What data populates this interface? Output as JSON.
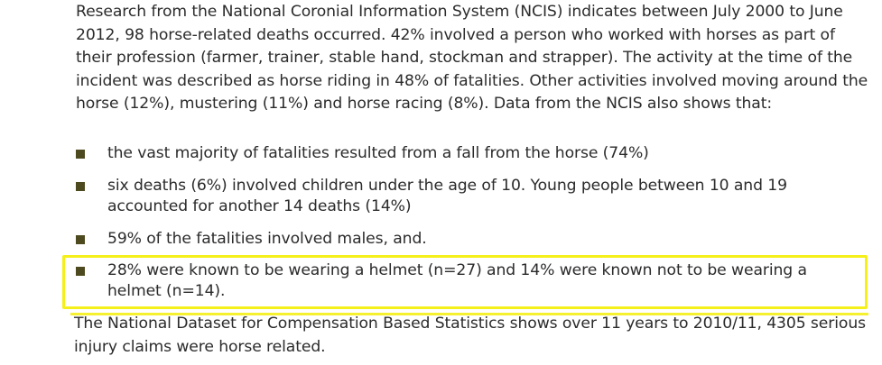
{
  "intro_paragraph": "Research from the National Coronial Information System (NCIS) indicates between July 2000 to June 2012, 98 horse-related deaths occurred. 42% involved a person who worked with horses as part of their profession (farmer, trainer, stable hand, stockman and strapper). The activity at the time of the incident was described as horse riding in 48% of fatalities. Other activities involved moving around the horse (12%), mustering (11%) and horse racing (8%). Data from the NCIS also shows that:",
  "bullets": [
    "the vast majority of fatalities resulted from a fall from the horse (74%)",
    "six deaths (6%) involved children under the age of 10. Young people between 10 and 19 accounted for another 14 deaths (14%)",
    "59% of the fatalities involved males, and.",
    "28% were known to be wearing a helmet (n=27) and 14% were known not to be wearing a helmet (n=14)."
  ],
  "outro_paragraph": "The National Dataset for Compensation Based Statistics shows over 11 years to 2010/11, 4305 serious injury claims were horse related.",
  "colors": {
    "text": "#2b2b2b",
    "bullet_marker": "#4d4a1f",
    "highlight": "#f5ef1a"
  }
}
